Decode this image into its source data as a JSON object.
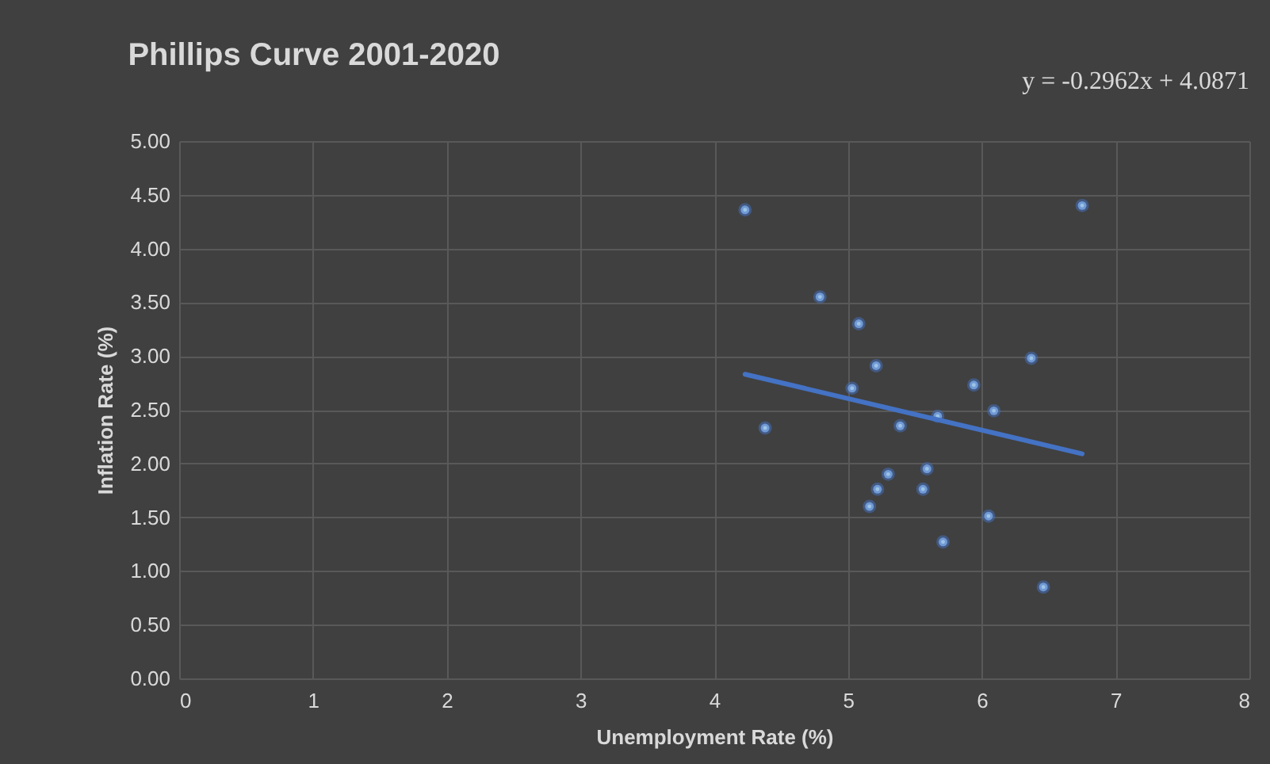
{
  "chart_data": {
    "type": "scatter",
    "title": "Phillips Curve 2001-2020",
    "xlabel": "Unemployment Rate (%)",
    "ylabel": "Inflation Rate (%)",
    "annotations": [
      "y = -0.2962x + 4.0871"
    ],
    "series": [
      {
        "color": "#9dc3e6",
        "marker": "circle",
        "x": [
          4.23,
          6.75,
          4.79,
          5.08,
          5.21,
          6.37,
          5.03,
          5.94,
          6.09,
          5.67,
          5.39,
          4.38,
          5.3,
          5.59,
          5.22,
          5.56,
          5.16,
          6.05,
          5.71,
          6.46
        ],
        "values": [
          4.36,
          4.4,
          3.55,
          3.3,
          2.91,
          2.98,
          2.7,
          2.73,
          2.49,
          2.44,
          2.35,
          2.33,
          1.9,
          1.95,
          1.76,
          1.76,
          1.6,
          1.51,
          1.27,
          0.85
        ]
      },
      {
        "type": "line",
        "color": "#4472c4",
        "line_style": "solid",
        "x": [
          4.23,
          6.75
        ],
        "values": [
          2.83,
          2.09
        ]
      }
    ],
    "xlim": [
      0,
      8
    ],
    "xticks": [
      0,
      1,
      2,
      3,
      4,
      5,
      6,
      7,
      8
    ],
    "ylim": [
      0,
      5
    ],
    "yticks": [
      {
        "value": 0,
        "label": "0.00"
      },
      {
        "value": 0.5,
        "label": "0.50"
      },
      {
        "value": 1,
        "label": "1.00"
      },
      {
        "value": 1.5,
        "label": "1.50"
      },
      {
        "value": 2,
        "label": "2.00"
      },
      {
        "value": 2.5,
        "label": "2.50"
      },
      {
        "value": 3,
        "label": "3.00"
      },
      {
        "value": 3.5,
        "label": "3.50"
      },
      {
        "value": 4,
        "label": "4.00"
      },
      {
        "value": 4.5,
        "label": "4.50"
      },
      {
        "value": 5,
        "label": "5.00"
      }
    ],
    "grid": true
  }
}
